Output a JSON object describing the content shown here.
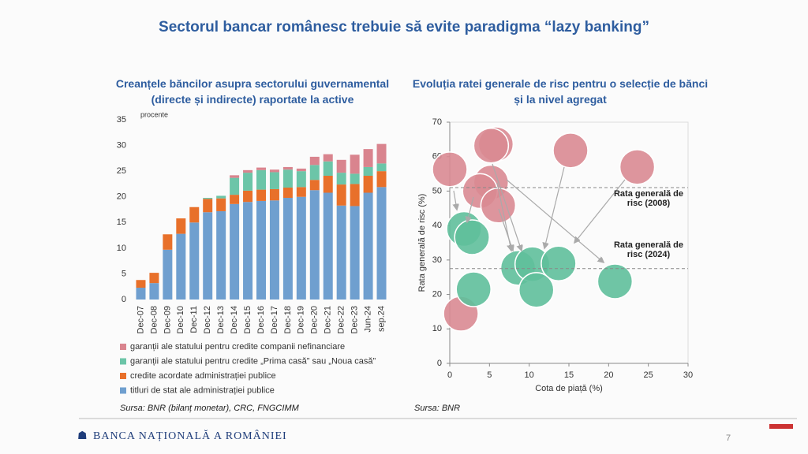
{
  "title": "Sectorul bancar românesc trebuie să evite paradigma “lazy banking”",
  "chart_data": [
    {
      "type": "stacked-bar",
      "title": "Creanțele băncilor asupra sectorului guvernamental (directe și indirecte) raportate la active",
      "unit": "procente",
      "categories": [
        "Dec-07",
        "Dec-08",
        "Dec-09",
        "Dec-10",
        "Dec-11",
        "Dec-12",
        "Dec-13",
        "Dec-14",
        "Dec-15",
        "Dec-16",
        "Dec-17",
        "Dec-18",
        "Dec-19",
        "Dec-20",
        "Dec-21",
        "Dec-22",
        "Dec-23",
        "Jun-24",
        "sep.24"
      ],
      "series": [
        {
          "name": "titluri de stat ale administrației publice",
          "color": "#6f9fcf",
          "values": [
            2.3,
            3.2,
            9.7,
            12.8,
            15,
            17,
            17.2,
            18.6,
            19,
            19.2,
            19.3,
            19.8,
            20,
            21.3,
            20.8,
            18.3,
            18.2,
            20.8,
            21.9
          ]
        },
        {
          "name": "credite acordate administrației publice",
          "color": "#e8702a",
          "values": [
            1.5,
            2.0,
            3.0,
            3.0,
            3.0,
            2.6,
            2.5,
            1.8,
            2.2,
            2.2,
            2.2,
            2.0,
            1.9,
            2.0,
            3.3,
            4.1,
            4.3,
            3.3,
            3.1
          ]
        },
        {
          "name": "garanții ale statului pentru credite „Prima casă” sau „Noua casă”",
          "color": "#6cc5a8",
          "values": [
            0,
            0,
            0,
            0,
            0,
            0.2,
            0.5,
            3.3,
            3.5,
            3.8,
            3.3,
            3.5,
            3.1,
            2.9,
            2.8,
            2.3,
            2.0,
            1.7,
            1.5
          ]
        },
        {
          "name": "garanții ale statului pentru credite companii nefinanciare",
          "color": "#d9848e",
          "values": [
            0,
            0,
            0,
            0,
            0,
            0,
            0,
            0.5,
            0.5,
            0.5,
            0.5,
            0.5,
            0.5,
            1.6,
            1.4,
            2.5,
            3.7,
            3.5,
            3.8
          ]
        }
      ],
      "ylim": [
        0,
        35
      ],
      "yticks": [
        0,
        5,
        10,
        15,
        20,
        25,
        30,
        35
      ],
      "source": "Sursa: BNR (bilanț monetar), CRC, FNGCIMM"
    },
    {
      "type": "scatter",
      "title": "Evoluția ratei generale de risc pentru o selecție de bănci și la nivel agregat",
      "x_label": "Cota de piață (%)",
      "y_label": "Rata generală de risc (%)",
      "series": [
        {
          "color": "#d98a92",
          "x": [
            0,
            5.8,
            5.2,
            15.2,
            23.6,
            5.2,
            3.8,
            6.1,
            1.4
          ],
          "values": [
            56.3,
            63.6,
            63.2,
            61.8,
            57,
            52.5,
            50,
            45.8,
            14.4
          ]
        },
        {
          "color": "#5fbf9b",
          "x": [
            1.8,
            2.8,
            3,
            8.6,
            10.4,
            13.7,
            20.8,
            10.9
          ],
          "values": [
            39,
            36.6,
            21.5,
            27.7,
            28.8,
            29,
            23.8,
            21.3
          ]
        }
      ],
      "reference_lines": [
        {
          "value": 51,
          "label": "Rata generală de risc (2008)"
        },
        {
          "value": 27.5,
          "label": "Rata generală de risc (2024)"
        }
      ],
      "xlim": [
        0,
        30
      ],
      "xticks": [
        0,
        5,
        10,
        15,
        20,
        25,
        30
      ],
      "ylim": [
        0,
        70
      ],
      "yticks": [
        0,
        10,
        20,
        30,
        40,
        50,
        60,
        70
      ],
      "source": "Sursa: BNR"
    }
  ],
  "footer": {
    "bank": "BANCA NAȚIONALĂ A ROMÂNIEI",
    "page": "7"
  }
}
